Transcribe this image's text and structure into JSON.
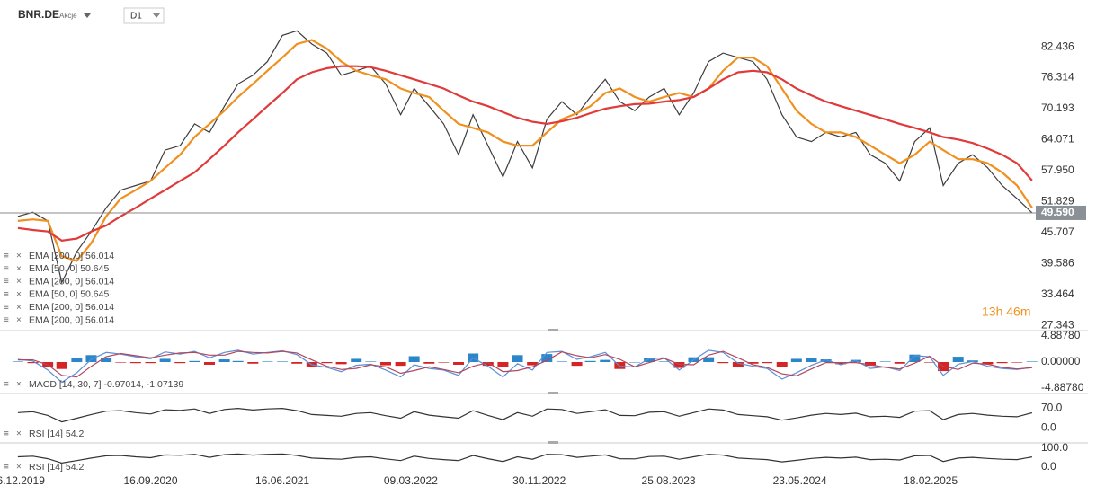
{
  "header": {
    "symbol": "BNR.DE",
    "asset_type": "Akcje",
    "timeframe": "D1"
  },
  "chart_data": [
    {
      "type": "line",
      "x": [
        "16.12.2019",
        "16.01.2020",
        "16.02.2020",
        "16.03.2020",
        "16.04.2020",
        "16.05.2020",
        "16.06.2020",
        "16.07.2020",
        "16.08.2020",
        "16.09.2020",
        "16.10.2020",
        "16.11.2020",
        "16.12.2020",
        "16.01.2021",
        "16.02.2021",
        "16.03.2021",
        "16.04.2021",
        "16.05.2021",
        "16.06.2021",
        "16.07.2021",
        "16.08.2021",
        "16.09.2021",
        "16.10.2021",
        "16.11.2021",
        "16.12.2021",
        "16.01.2022",
        "16.02.2022",
        "16.03.2022",
        "16.04.2022",
        "16.05.2022",
        "16.06.2022",
        "16.07.2022",
        "16.08.2022",
        "16.09.2022",
        "16.10.2022",
        "16.11.2022",
        "16.12.2022",
        "16.01.2023",
        "16.02.2023",
        "16.03.2023",
        "16.04.2023",
        "16.05.2023",
        "16.06.2023",
        "16.07.2023",
        "16.08.2023",
        "16.09.2023",
        "16.10.2023",
        "16.11.2023",
        "16.12.2023",
        "16.01.2024",
        "16.02.2024",
        "16.03.2024",
        "16.04.2024",
        "16.05.2024",
        "16.06.2024",
        "16.07.2024",
        "16.08.2024",
        "16.09.2024",
        "16.10.2024",
        "16.11.2024",
        "16.12.2024",
        "16.01.2025",
        "16.02.2025",
        "16.03.2025",
        "16.04.2025",
        "16.05.2025",
        "16.06.2025",
        "16.07.2025",
        "16.08.2025",
        "16.09.2025"
      ],
      "series": [
        {
          "color": "#3d3d3d",
          "values": [
            48.9,
            49.7,
            48.0,
            35.8,
            41.9,
            45.9,
            50.6,
            54.1,
            55.0,
            55.9,
            62.0,
            62.9,
            67.2,
            65.5,
            70.7,
            75.1,
            76.8,
            79.5,
            84.7,
            85.6,
            83.0,
            81.2,
            76.8,
            77.7,
            78.6,
            75.1,
            69.0,
            74.2,
            70.7,
            67.2,
            61.1,
            69.0,
            62.9,
            56.7,
            63.7,
            58.5,
            68.1,
            71.6,
            69.0,
            72.5,
            76.0,
            71.6,
            69.8,
            72.5,
            74.2,
            69.0,
            73.3,
            79.5,
            81.2,
            80.3,
            79.5,
            76.0,
            69.0,
            64.6,
            63.7,
            65.5,
            64.6,
            65.5,
            61.1,
            59.4,
            55.9,
            63.7,
            66.4,
            55.0,
            59.4,
            61.1,
            58.5,
            55.0,
            52.4,
            49.6
          ]
        },
        {
          "color": "#f0901e",
          "values": [
            48.0,
            48.3,
            48.0,
            41.0,
            40.1,
            43.6,
            48.9,
            52.4,
            54.1,
            55.9,
            58.5,
            61.1,
            64.6,
            67.2,
            69.8,
            72.5,
            75.1,
            77.7,
            80.3,
            83.0,
            83.8,
            82.1,
            79.5,
            77.7,
            76.8,
            76.0,
            74.2,
            73.3,
            72.5,
            69.8,
            67.2,
            66.4,
            65.5,
            63.7,
            62.9,
            62.9,
            65.5,
            68.1,
            69.3,
            70.7,
            73.3,
            74.2,
            72.5,
            71.6,
            72.5,
            73.3,
            72.5,
            74.2,
            77.7,
            80.3,
            80.3,
            78.6,
            74.2,
            69.8,
            67.2,
            65.5,
            65.5,
            64.6,
            62.9,
            61.1,
            59.4,
            61.1,
            63.7,
            62.0,
            60.2,
            60.2,
            59.4,
            57.6,
            55.0,
            50.6
          ]
        },
        {
          "color": "#e03a3a",
          "values": [
            46.6,
            46.2,
            45.9,
            44.1,
            44.5,
            45.9,
            47.1,
            48.9,
            50.6,
            52.4,
            54.1,
            55.9,
            57.6,
            60.2,
            62.9,
            65.5,
            68.1,
            70.7,
            73.3,
            76.0,
            77.4,
            78.2,
            78.6,
            78.6,
            78.4,
            77.7,
            76.8,
            76.0,
            75.1,
            74.2,
            72.8,
            71.6,
            70.7,
            69.5,
            68.4,
            67.6,
            67.2,
            67.7,
            68.4,
            69.3,
            70.2,
            70.7,
            71.1,
            71.2,
            71.6,
            71.9,
            72.5,
            74.2,
            76.0,
            77.4,
            77.7,
            77.4,
            76.0,
            74.2,
            72.8,
            71.6,
            70.7,
            69.8,
            68.97,
            68.1,
            67.2,
            66.4,
            65.5,
            64.6,
            64.1,
            63.4,
            62.3,
            61.1,
            59.4,
            56.0
          ]
        }
      ],
      "xlim": [
        "09.11.2019",
        "20.09.2025"
      ],
      "xticks": [
        "16.12.2019",
        "16.09.2020",
        "16.06.2021",
        "09.03.2022",
        "30.11.2022",
        "25.08.2023",
        "23.05.2024",
        "18.02.2025"
      ],
      "ylim": [
        26.3,
        91.7
      ],
      "yticks": [
        82.436,
        76.314,
        70.193,
        64.071,
        {
          "value": 57.95,
          "label": "57.950"
        },
        51.829,
        45.707,
        39.586,
        33.464,
        27.343
      ],
      "last_price": {
        "value": 49.59,
        "label": "49.590"
      },
      "countdown": "13h 46m",
      "indicator_labels": [
        "EMA [200, 0] 56.014",
        "EMA [50, 0] 50.645",
        "EMA [200, 0] 56.014",
        "EMA [50, 0] 50.645",
        "EMA [200, 0] 56.014",
        "EMA [200, 0] 56.014"
      ]
    },
    {
      "type": "line",
      "label": "MACD [14, 30, 7] -0.97014, -1.07139",
      "series": [
        {
          "type": "bar",
          "colors": {
            "positive": "#2a86c8",
            "negative": "#d42424"
          },
          "values": [
            0.1,
            -0.2,
            -1.0,
            -1.3,
            0.8,
            1.3,
            0.8,
            -0.1,
            -0.2,
            -0.2,
            0.6,
            -0.2,
            0.2,
            -0.5,
            0.5,
            0.2,
            -0.3,
            0.1,
            0.1,
            -0.3,
            -0.9,
            -0.2,
            -0.4,
            0.6,
            0.1,
            -0.6,
            -0.7,
            1.1,
            -0.3,
            -0.1,
            -0.5,
            1.6,
            -0.7,
            -1.0,
            1.3,
            -0.6,
            1.5,
            0.1,
            -0.7,
            0.2,
            0.4,
            -1.3,
            0.0,
            0.7,
            0.1,
            -1.1,
            0.9,
            0.9,
            -0.2,
            -1.0,
            -0.3,
            -0.2,
            -1.0,
            0.6,
            0.7,
            0.5,
            -0.4,
            0.4,
            -0.7,
            0.1,
            -0.3,
            1.4,
            -0.1,
            -1.7,
            1.0,
            0.3,
            -0.4,
            -0.2,
            -0.1,
            0.1
          ]
        },
        {
          "color": "#5b8fd6",
          "values": [
            0.5,
            0.2,
            -1.5,
            -3.8,
            -2.0,
            0.5,
            1.8,
            1.5,
            1.0,
            0.6,
            1.9,
            1.5,
            2.0,
            0.8,
            1.8,
            2.2,
            1.5,
            1.8,
            2.1,
            1.4,
            -0.5,
            -1.0,
            -1.8,
            -0.6,
            -0.4,
            -1.5,
            -2.8,
            -0.5,
            -1.2,
            -1.5,
            -2.5,
            0.8,
            -0.8,
            -2.8,
            -0.3,
            -1.5,
            1.8,
            2.0,
            0.5,
            1.0,
            1.8,
            -0.8,
            -0.9,
            0.6,
            0.8,
            -1.5,
            0.4,
            2.2,
            1.8,
            -0.2,
            -0.8,
            -1.2,
            -3.2,
            -2.0,
            -0.6,
            0.4,
            -0.5,
            0.3,
            -1.2,
            -0.9,
            -1.6,
            1.2,
            1.0,
            -2.5,
            -0.4,
            0.1,
            -0.8,
            -1.2,
            -1.4,
            -0.97
          ]
        },
        {
          "color": "#b0485e",
          "values": [
            0.4,
            0.4,
            -0.5,
            -2.5,
            -2.8,
            -0.8,
            1.0,
            1.6,
            1.2,
            0.8,
            1.3,
            1.7,
            1.8,
            1.3,
            1.3,
            2.0,
            1.8,
            1.7,
            2.0,
            1.7,
            0.4,
            -0.8,
            -1.4,
            -1.2,
            -0.5,
            -0.9,
            -2.1,
            -1.6,
            -0.9,
            -1.4,
            -2.0,
            -0.8,
            -0.1,
            -1.8,
            -1.6,
            -0.9,
            0.3,
            1.9,
            1.2,
            0.8,
            1.4,
            0.5,
            -0.9,
            -0.1,
            0.7,
            -0.4,
            -0.5,
            1.3,
            2.0,
            0.8,
            -0.5,
            -1.0,
            -2.2,
            -2.6,
            -1.3,
            -0.1,
            -0.1,
            -0.1,
            -0.5,
            -1.0,
            -1.3,
            -0.2,
            1.1,
            -0.8,
            -1.4,
            -0.2,
            -0.4,
            -1.0,
            -1.3,
            -1.07
          ]
        }
      ],
      "ylim": [
        -5.9,
        5.9
      ],
      "yticks": [
        {
          "value": 4.8878,
          "label": "4.88780"
        },
        {
          "value": 0,
          "label": "0.00000"
        },
        {
          "value": -4.8878,
          "label": "-4.88780"
        }
      ]
    },
    {
      "type": "line",
      "label": "RSI [14] 54.2",
      "series": [
        {
          "color": "#333333",
          "values": [
            55,
            58,
            45,
            22,
            35,
            48,
            60,
            62,
            55,
            50,
            65,
            63,
            68,
            52,
            66,
            70,
            64,
            68,
            70,
            62,
            48,
            45,
            42,
            52,
            55,
            44,
            35,
            58,
            46,
            40,
            35,
            62,
            45,
            30,
            55,
            42,
            68,
            66,
            52,
            58,
            65,
            45,
            44,
            56,
            58,
            42,
            55,
            68,
            64,
            48,
            44,
            40,
            28,
            36,
            46,
            52,
            48,
            53,
            40,
            42,
            38,
            60,
            62,
            30,
            48,
            52,
            46,
            42,
            40,
            54.2
          ]
        }
      ],
      "ylim": [
        -53,
        123
      ],
      "yticks": [
        {
          "value": 70,
          "label": "70.0"
        },
        {
          "value": 0,
          "label": "0.0"
        }
      ]
    },
    {
      "type": "line",
      "label": "RSI [14] 54.2",
      "series": [
        {
          "color": "#333333",
          "values": [
            55,
            58,
            45,
            22,
            35,
            48,
            60,
            62,
            55,
            50,
            65,
            63,
            68,
            52,
            66,
            70,
            64,
            68,
            70,
            62,
            48,
            45,
            42,
            52,
            55,
            44,
            35,
            58,
            46,
            40,
            35,
            62,
            45,
            30,
            55,
            42,
            68,
            66,
            52,
            58,
            65,
            45,
            44,
            56,
            58,
            42,
            55,
            68,
            64,
            48,
            44,
            40,
            28,
            36,
            46,
            52,
            48,
            53,
            40,
            42,
            38,
            60,
            62,
            30,
            48,
            52,
            46,
            42,
            40,
            54.2
          ]
        }
      ],
      "ylim": [
        -47.6,
        128.6
      ],
      "yticks": [
        {
          "value": 100,
          "label": "100.0"
        },
        {
          "value": 0,
          "label": "0.0"
        }
      ]
    }
  ]
}
